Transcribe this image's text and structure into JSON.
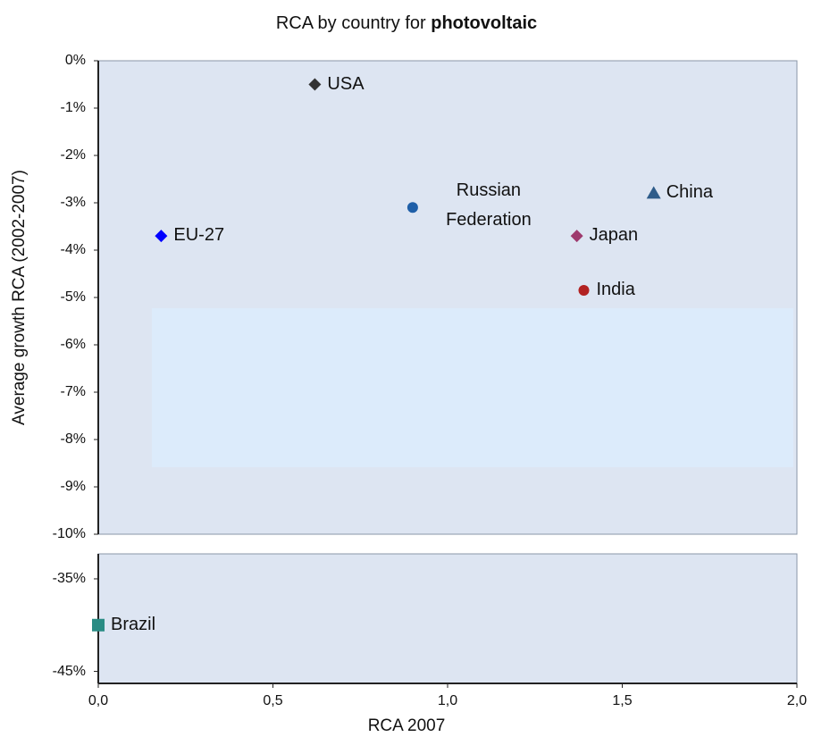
{
  "chart_data": {
    "type": "scatter",
    "title": "RCA by country for",
    "title_bold": "photovoltaic",
    "xlabel": "RCA 2007",
    "ylabel": "Average growth RCA (2002-2007)",
    "xlim": [
      0,
      2
    ],
    "xticks": [
      {
        "value": 0,
        "label": "0,0"
      },
      {
        "value": 0.5,
        "label": "0,5"
      },
      {
        "value": 1,
        "label": "1,0"
      },
      {
        "value": 1.5,
        "label": "1,5"
      },
      {
        "value": 2,
        "label": "2,0"
      }
    ],
    "ylim": [
      -10,
      0
    ],
    "yticks": [
      {
        "value": 0,
        "label": "0%"
      },
      {
        "value": -1,
        "label": "-1%"
      },
      {
        "value": -2,
        "label": "-2%"
      },
      {
        "value": -3,
        "label": "-3%"
      },
      {
        "value": -4,
        "label": "-4%"
      },
      {
        "value": -5,
        "label": "-5%"
      },
      {
        "value": -6,
        "label": "-6%"
      },
      {
        "value": -7,
        "label": "-7%"
      },
      {
        "value": -8,
        "label": "-8%"
      },
      {
        "value": -9,
        "label": "-9%"
      },
      {
        "value": -10,
        "label": "-10%"
      }
    ],
    "y2lim": [
      -46.3,
      -32.3
    ],
    "y2ticks": [
      {
        "value": -35,
        "label": "-35%"
      },
      {
        "value": -45,
        "label": "-45%"
      }
    ],
    "series": [
      {
        "name": "USA",
        "color": "#333333",
        "marker": "diamond",
        "x": [
          0.62
        ],
        "values": [
          -0.5
        ]
      },
      {
        "name": "Russian Federation",
        "color": "#1f5fa8",
        "marker": "circle",
        "x": [
          0.9
        ],
        "values": [
          -3.1
        ]
      },
      {
        "name": "China",
        "color": "#2e5c8a",
        "marker": "triangle",
        "x": [
          1.59
        ],
        "values": [
          -2.8
        ]
      },
      {
        "name": "EU-27",
        "color": "#0000ff",
        "marker": "diamond",
        "x": [
          0.18
        ],
        "values": [
          -3.7
        ]
      },
      {
        "name": "Japan",
        "color": "#9e3a6e",
        "marker": "diamond",
        "x": [
          1.37
        ],
        "values": [
          -3.7
        ]
      },
      {
        "name": "India",
        "color": "#b22222",
        "marker": "circle",
        "x": [
          1.39
        ],
        "values": [
          -4.85
        ]
      },
      {
        "name": "Brazil",
        "color": "#2a8c84",
        "marker": "square",
        "axis": "y2",
        "x": [
          0
        ],
        "values": [
          -40
        ]
      }
    ]
  }
}
